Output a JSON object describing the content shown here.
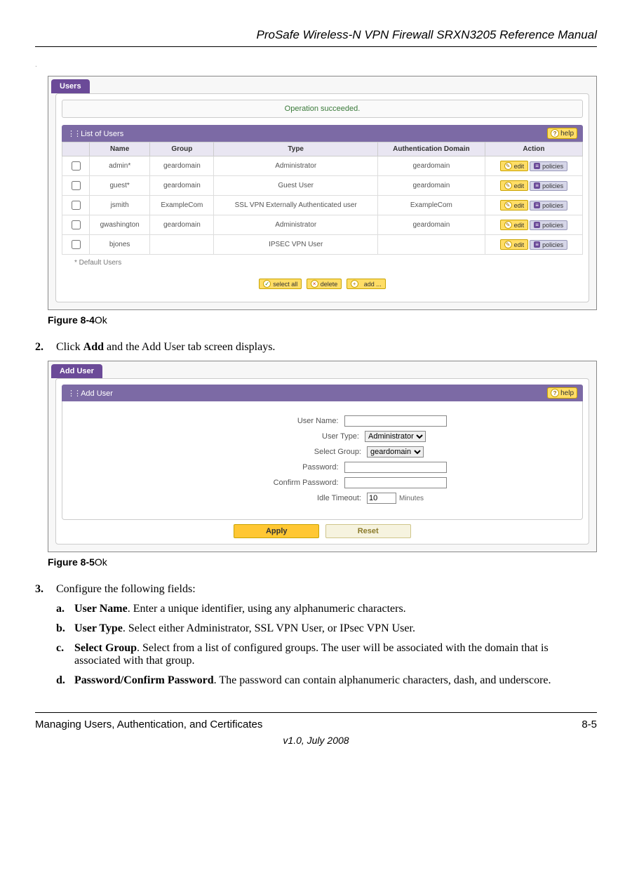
{
  "doc": {
    "header": "ProSafe Wireless-N VPN Firewall SRXN3205 Reference Manual",
    "footer_left": "Managing Users, Authentication, and Certificates",
    "footer_right": "8-5",
    "footer_version": "v1.0, July 2008"
  },
  "fig84": {
    "tab": "Users",
    "status": "Operation succeeded.",
    "section_title": "List of Users",
    "help_label": "help",
    "columns": [
      "Name",
      "Group",
      "Type",
      "Authentication Domain",
      "Action"
    ],
    "rows": [
      {
        "name": "admin*",
        "group": "geardomain",
        "type": "Administrator",
        "domain": "geardomain"
      },
      {
        "name": "guest*",
        "group": "geardomain",
        "type": "Guest User",
        "domain": "geardomain"
      },
      {
        "name": "jsmith",
        "group": "ExampleCom",
        "type": "SSL VPN Externally Authenticated user",
        "domain": "ExampleCom"
      },
      {
        "name": "gwashington",
        "group": "geardomain",
        "type": "Administrator",
        "domain": "geardomain"
      },
      {
        "name": "bjones",
        "group": "",
        "type": "IPSEC VPN User",
        "domain": ""
      }
    ],
    "edit_label": "edit",
    "policies_label": "policies",
    "default_note": "* Default Users",
    "btn_select_all": "select all",
    "btn_delete": "delete",
    "btn_add": "add ...",
    "caption_prefix": "Figure 8-4",
    "caption_suffix": "Ok"
  },
  "step2": {
    "num": "2.",
    "text_before": "Click ",
    "bold": "Add",
    "text_after": " and the Add User tab screen displays."
  },
  "fig85": {
    "tab": "Add User",
    "section_title": "Add User",
    "help_label": "help",
    "labels": {
      "username": "User Name:",
      "usertype": "User Type:",
      "selectgroup": "Select Group:",
      "password": "Password:",
      "confirm": "Confirm Password:",
      "idle": "Idle Timeout:"
    },
    "values": {
      "usertype": "Administrator",
      "selectgroup": "geardomain",
      "idle": "10",
      "idle_unit": "Minutes"
    },
    "apply": "Apply",
    "reset": "Reset",
    "caption_prefix": "Figure 8-5",
    "caption_suffix": "Ok"
  },
  "step3": {
    "num": "3.",
    "text": "Configure the following fields:"
  },
  "substeps": [
    {
      "l": "a.",
      "bold": "User Name",
      "text": ". Enter a unique identifier, using any alphanumeric characters."
    },
    {
      "l": "b.",
      "bold": "User Type",
      "text": ". Select either Administrator, SSL VPN User, or IPsec VPN User."
    },
    {
      "l": "c.",
      "bold": "Select Group",
      "text": ". Select from a list of configured groups. The user will be associated with the domain that is associated with that group."
    },
    {
      "l": "d.",
      "bold": "Password/Confirm Password",
      "text": ". The password can contain alphanumeric characters, dash, and underscore."
    }
  ]
}
